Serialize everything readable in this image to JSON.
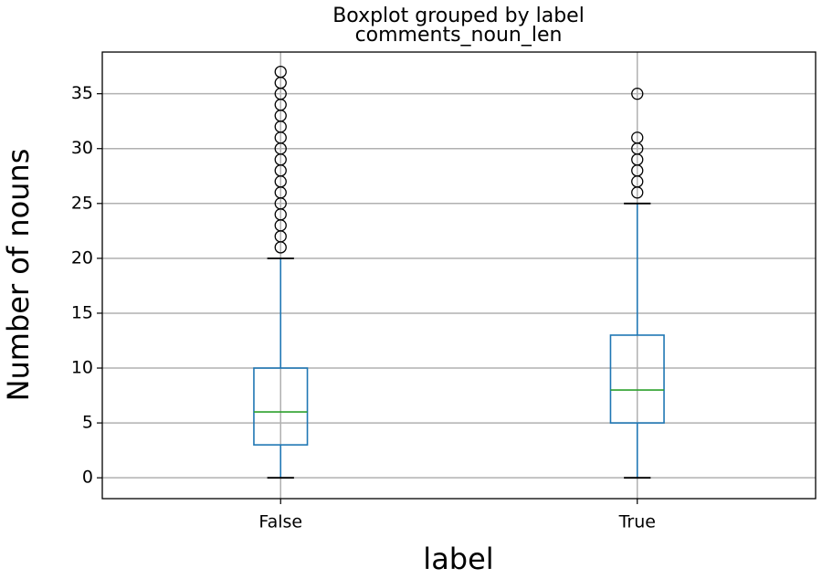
{
  "chart_data": {
    "type": "box",
    "title": "Boxplot grouped by label",
    "subtitle": "comments_noun_len",
    "x_label": "label",
    "y_label": "Number of nouns",
    "categories": [
      "False",
      "True"
    ],
    "boxes": [
      {
        "whislo": 0,
        "q1": 3,
        "med": 6,
        "q3": 10,
        "whishi": 20,
        "fliers": [
          21,
          22,
          23,
          24,
          25,
          26,
          27,
          28,
          29,
          30,
          31,
          32,
          33,
          34,
          35,
          36,
          37
        ]
      },
      {
        "whislo": 0,
        "q1": 5,
        "med": 8,
        "q3": 13,
        "whishi": 25,
        "fliers": [
          26,
          27,
          28,
          29,
          30,
          31,
          35
        ]
      }
    ],
    "box_color": "#1f77b4",
    "median_color": "#2ca02c",
    "whisker_cap_color": "#000000",
    "ylim": [
      -1.9,
      38.8
    ],
    "yticks": [
      0,
      5,
      10,
      15,
      20,
      25,
      30,
      35
    ],
    "grid": true
  }
}
